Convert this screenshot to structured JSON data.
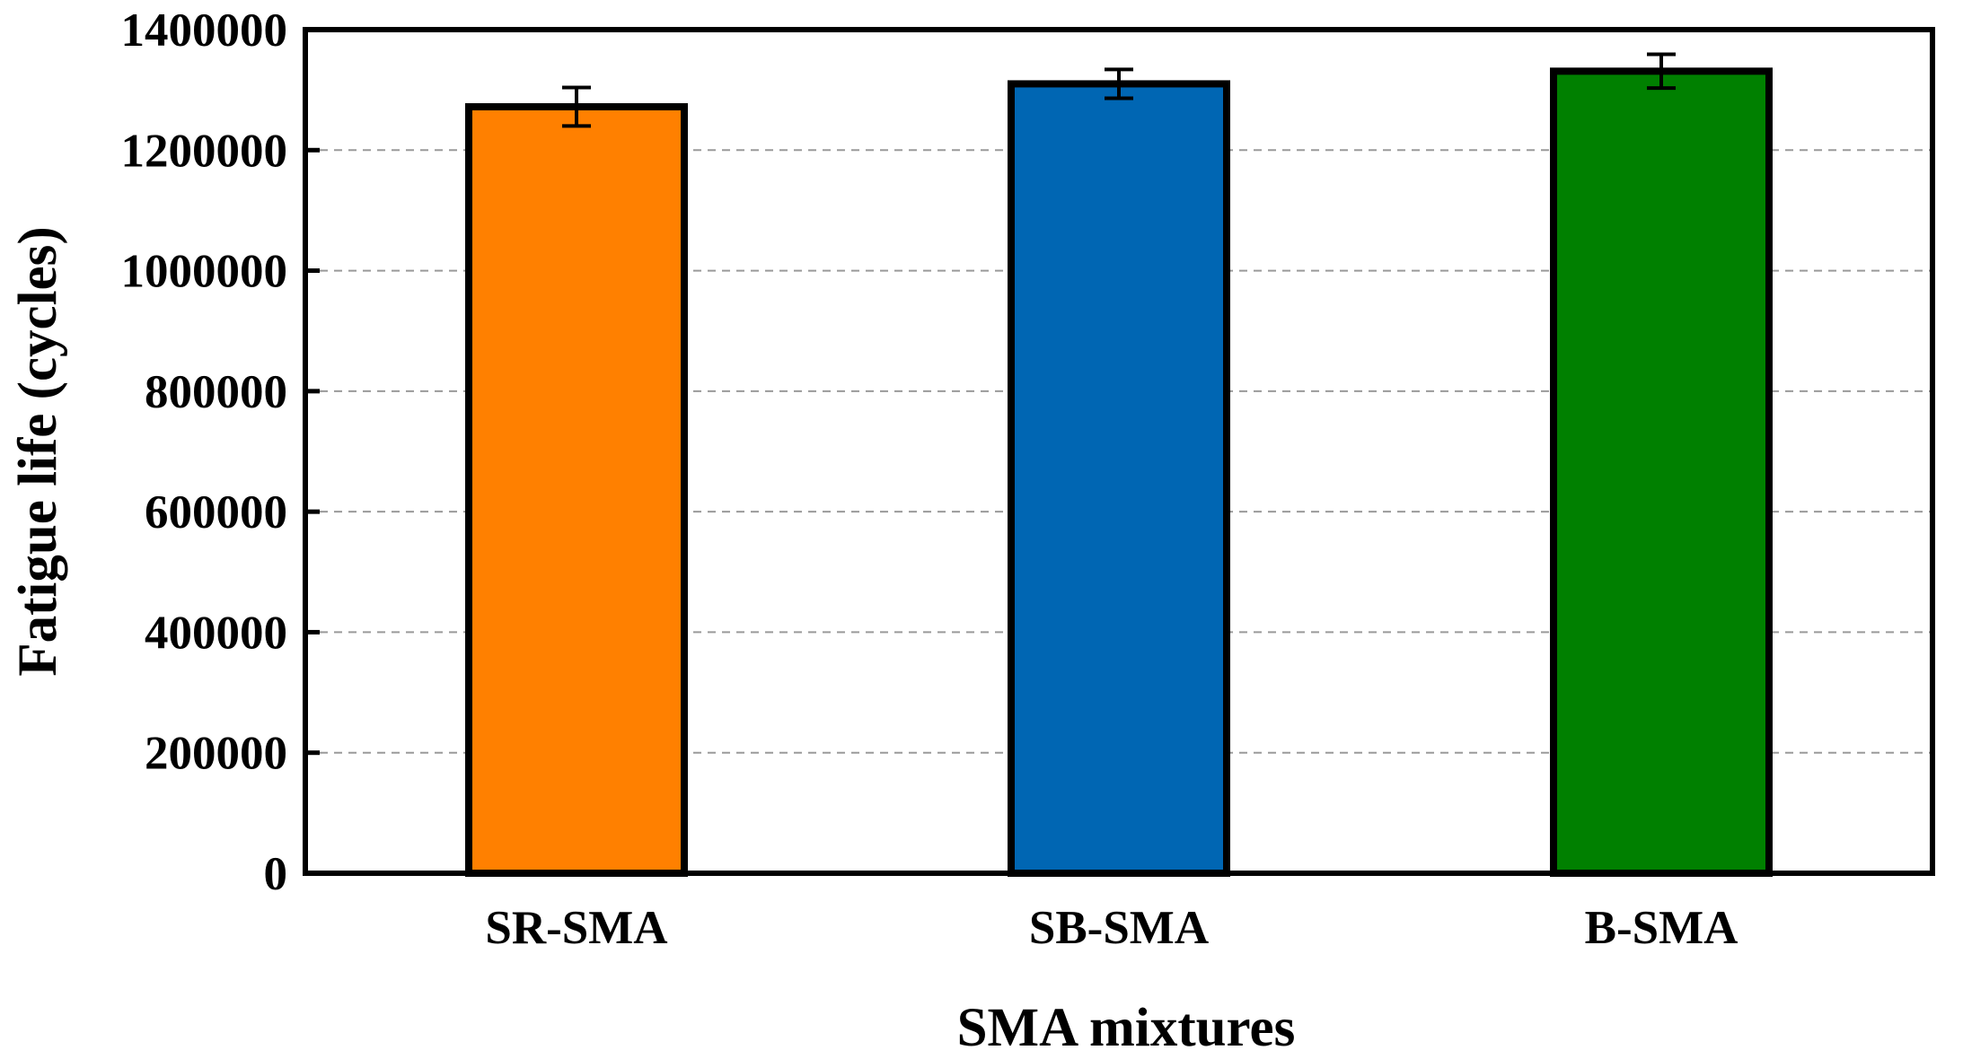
{
  "chart_data": {
    "type": "bar",
    "categories": [
      "SR-SMA",
      "SB-SMA",
      "B-SMA"
    ],
    "values": [
      1272000,
      1310000,
      1331000
    ],
    "error": [
      32000,
      24000,
      28000
    ],
    "colors": [
      "#FF8000",
      "#0066B3",
      "#008000"
    ],
    "title": "",
    "xlabel": "SMA mixtures",
    "ylabel": "Fatigue life (cycles)",
    "ylim": [
      0,
      1400000
    ],
    "yticks": [
      0,
      200000,
      400000,
      600000,
      800000,
      1000000,
      1200000,
      1400000
    ],
    "ytick_labels": [
      "0",
      "200000",
      "400000",
      "600000",
      "800000",
      "1000000",
      "1200000",
      "1400000"
    ],
    "grid": "horizontal dashed",
    "legend": "none"
  }
}
